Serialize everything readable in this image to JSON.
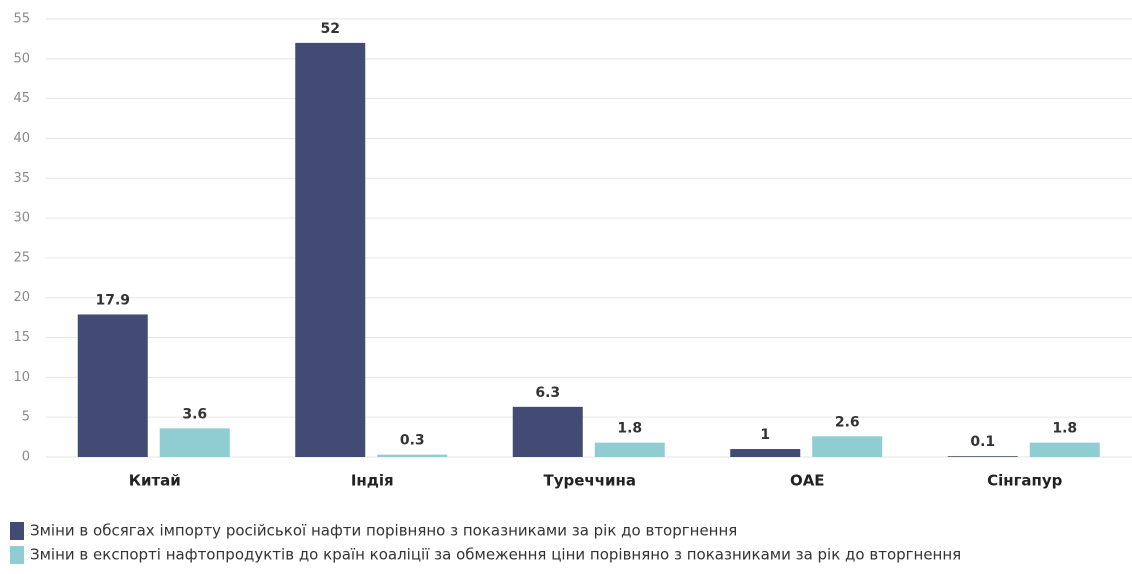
{
  "chart_data": {
    "type": "bar",
    "categories": [
      "Китай",
      "Індія",
      "Туреччина",
      "ОАЕ",
      "Сінгапур"
    ],
    "series": [
      {
        "name": "Зміни в обсягах імпорту російської нафти порівняно з показниками за рік до вторгнення",
        "color": "#414b73",
        "values": [
          17.9,
          52,
          6.3,
          1,
          0.1
        ]
      },
      {
        "name": "Зміни в експорті нафтопродуктів до країн коаліції за обмеження ціни порівняно з показниками за рік до вторгнення",
        "color": "#8fcdd3",
        "values": [
          3.6,
          0.3,
          1.8,
          2.6,
          1.8
        ]
      }
    ],
    "ylim": [
      0,
      55
    ],
    "yticks": [
      0,
      5,
      10,
      15,
      20,
      25,
      30,
      35,
      40,
      45,
      50,
      55
    ],
    "grid": true,
    "legend": "bottom-left"
  }
}
